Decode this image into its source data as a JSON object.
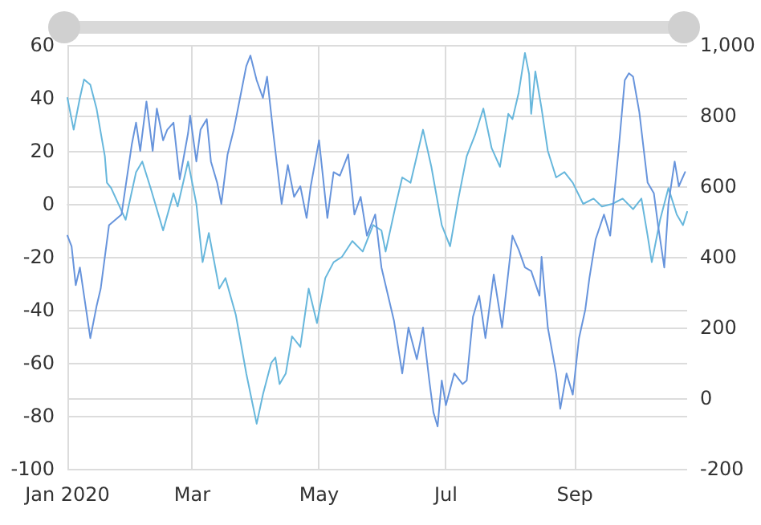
{
  "chart_data": {
    "type": "line",
    "xlim": [
      "2020-01-01",
      "2020-10-25"
    ],
    "xticks": [
      {
        "value": "2020-01-01",
        "label": "Jan 2020"
      },
      {
        "value": "2020-03-01",
        "label": "Mar"
      },
      {
        "value": "2020-05-01",
        "label": "May"
      },
      {
        "value": "2020-07-01",
        "label": "Jul"
      },
      {
        "value": "2020-09-01",
        "label": "Sep"
      }
    ],
    "ylim": [
      -100,
      60
    ],
    "yticks": [
      -100,
      -80,
      -60,
      -40,
      -20,
      0,
      20,
      40,
      60
    ],
    "y2lim": [
      -200,
      1000
    ],
    "y2ticks": [
      -200,
      0,
      200,
      400,
      600,
      800,
      {
        "value": 1000,
        "label": "1,000"
      }
    ],
    "grid": true,
    "marker": "none",
    "line_style": "solid",
    "series": [
      {
        "color": "#67b7dc",
        "x": [
          "2020-01-01",
          "2020-01-04",
          "2020-01-07",
          "2020-01-09",
          "2020-01-12",
          "2020-01-15",
          "2020-01-19",
          "2020-01-20",
          "2020-01-22",
          "2020-01-29",
          "2020-02-03",
          "2020-02-06",
          "2020-02-10",
          "2020-02-16",
          "2020-02-21",
          "2020-02-23",
          "2020-02-28",
          "2020-03-03",
          "2020-03-06",
          "2020-03-09",
          "2020-03-14",
          "2020-03-17",
          "2020-03-22",
          "2020-03-27",
          "2020-04-01",
          "2020-04-04",
          "2020-04-08",
          "2020-04-10",
          "2020-04-12",
          "2020-04-15",
          "2020-04-18",
          "2020-04-22",
          "2020-04-26",
          "2020-04-30",
          "2020-05-04",
          "2020-05-08",
          "2020-05-12",
          "2020-05-17",
          "2020-05-22",
          "2020-05-27",
          "2020-05-31",
          "2020-06-02",
          "2020-06-07",
          "2020-06-10",
          "2020-06-14",
          "2020-06-20",
          "2020-06-24",
          "2020-06-29",
          "2020-07-03",
          "2020-07-07",
          "2020-07-11",
          "2020-07-15",
          "2020-07-19",
          "2020-07-23",
          "2020-07-27",
          "2020-07-31",
          "2020-08-02",
          "2020-08-05",
          "2020-08-08",
          "2020-08-10",
          "2020-08-11",
          "2020-08-13",
          "2020-08-16",
          "2020-08-19",
          "2020-08-23",
          "2020-08-27",
          "2020-08-31",
          "2020-09-05",
          "2020-09-10",
          "2020-09-14",
          "2020-09-19",
          "2020-09-24",
          "2020-09-29",
          "2020-10-03",
          "2020-10-06",
          "2020-10-08",
          "2020-10-12",
          "2020-10-16",
          "2020-10-20",
          "2020-10-23",
          "2020-10-25"
        ],
        "values": [
          40,
          28,
          40,
          47,
          45,
          36,
          18,
          8,
          6,
          -6,
          12,
          16,
          6,
          -10,
          4,
          -1,
          16,
          0,
          -22,
          -11,
          -32,
          -28,
          -42,
          -64,
          -83,
          -72,
          -60,
          -58,
          -68,
          -64,
          -50,
          -54,
          -32,
          -45,
          -28,
          -22,
          -20,
          -14,
          -18,
          -8,
          -10,
          -18,
          0,
          10,
          8,
          28,
          14,
          -8,
          -16,
          2,
          18,
          26,
          36,
          21,
          14,
          34,
          32,
          42,
          57,
          49,
          34,
          50,
          36,
          20,
          10,
          12,
          8,
          0,
          2,
          -1,
          0,
          2,
          -2,
          2,
          -12,
          -22,
          -6,
          6,
          -4,
          -8,
          -3
        ]
      },
      {
        "color": "#6794dc",
        "axis": "y2",
        "x": [
          "2020-01-01",
          "2020-01-03",
          "2020-01-05",
          "2020-01-07",
          "2020-01-12",
          "2020-01-15",
          "2020-01-17",
          "2020-01-21",
          "2020-01-27",
          "2020-02-01",
          "2020-02-03",
          "2020-02-05",
          "2020-02-08",
          "2020-02-11",
          "2020-02-13",
          "2020-02-16",
          "2020-02-18",
          "2020-02-21",
          "2020-02-24",
          "2020-02-28",
          "2020-02-29",
          "2020-03-03",
          "2020-03-05",
          "2020-03-08",
          "2020-03-10",
          "2020-03-13",
          "2020-03-15",
          "2020-03-18",
          "2020-03-21",
          "2020-03-23",
          "2020-03-27",
          "2020-03-29",
          "2020-04-01",
          "2020-04-04",
          "2020-04-06",
          "2020-04-09",
          "2020-04-13",
          "2020-04-16",
          "2020-04-19",
          "2020-04-22",
          "2020-04-25",
          "2020-04-27",
          "2020-05-01",
          "2020-05-05",
          "2020-05-08",
          "2020-05-11",
          "2020-05-15",
          "2020-05-18",
          "2020-05-21",
          "2020-05-24",
          "2020-05-28",
          "2020-05-31",
          "2020-06-06",
          "2020-06-10",
          "2020-06-13",
          "2020-06-17",
          "2020-06-20",
          "2020-06-23",
          "2020-06-25",
          "2020-06-27",
          "2020-06-29",
          "2020-07-01",
          "2020-07-05",
          "2020-07-09",
          "2020-07-11",
          "2020-07-14",
          "2020-07-17",
          "2020-07-20",
          "2020-07-24",
          "2020-07-28",
          "2020-08-02",
          "2020-08-05",
          "2020-08-08",
          "2020-08-11",
          "2020-08-15",
          "2020-08-16",
          "2020-08-19",
          "2020-08-23",
          "2020-08-25",
          "2020-08-28",
          "2020-08-31",
          "2020-09-03",
          "2020-09-06",
          "2020-09-08",
          "2020-09-11",
          "2020-09-15",
          "2020-09-18",
          "2020-09-22",
          "2020-09-25",
          "2020-09-27",
          "2020-09-29",
          "2020-10-02",
          "2020-10-06",
          "2020-10-09",
          "2020-10-11",
          "2020-10-14",
          "2020-10-16",
          "2020-10-19",
          "2020-10-21",
          "2020-10-24"
        ],
        "values": [
          460,
          430,
          320,
          370,
          170,
          260,
          310,
          490,
          520,
          720,
          780,
          700,
          840,
          700,
          820,
          730,
          760,
          780,
          620,
          750,
          800,
          670,
          760,
          790,
          670,
          610,
          550,
          690,
          760,
          820,
          940,
          970,
          900,
          850,
          910,
          750,
          550,
          660,
          570,
          600,
          510,
          600,
          730,
          510,
          640,
          630,
          690,
          520,
          570,
          460,
          520,
          370,
          220,
          70,
          200,
          110,
          200,
          50,
          -40,
          -80,
          50,
          -20,
          70,
          40,
          50,
          230,
          290,
          170,
          350,
          200,
          460,
          420,
          370,
          360,
          290,
          400,
          200,
          70,
          -30,
          70,
          10,
          170,
          250,
          340,
          450,
          520,
          460,
          700,
          900,
          920,
          910,
          810,
          610,
          580,
          490,
          370,
          550,
          670,
          600,
          640
        ]
      }
    ]
  }
}
